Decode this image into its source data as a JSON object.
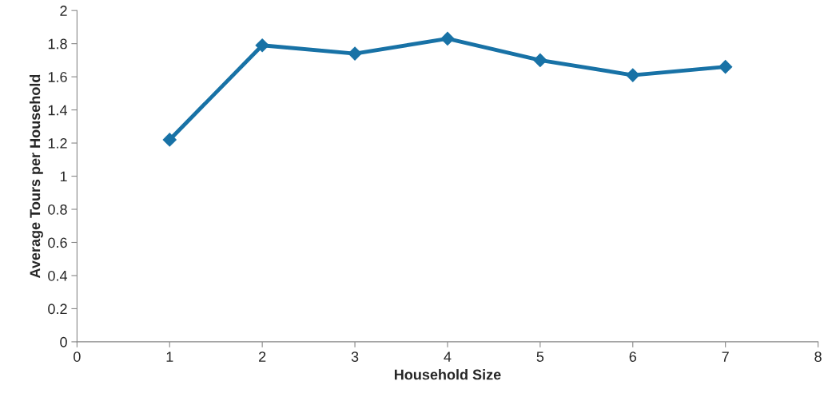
{
  "chart_data": {
    "type": "line",
    "xlabel": "Household Size",
    "ylabel": "Average Tours per Household",
    "x": [
      1,
      2,
      3,
      4,
      5,
      6,
      7
    ],
    "series": [
      {
        "color": "#1872a6",
        "values": [
          1.22,
          1.79,
          1.74,
          1.83,
          1.7,
          1.61,
          1.66
        ]
      }
    ],
    "xlim": [
      0,
      8
    ],
    "xticks": [
      0,
      1,
      2,
      3,
      4,
      5,
      6,
      7,
      8
    ],
    "ylim": [
      0,
      2
    ],
    "yticks": [
      0,
      0.2,
      0.4,
      0.6,
      0.8,
      1,
      1.2,
      1.4,
      1.6,
      1.8,
      2
    ],
    "grid": false,
    "marker": "diamond",
    "line_style": "solid"
  }
}
